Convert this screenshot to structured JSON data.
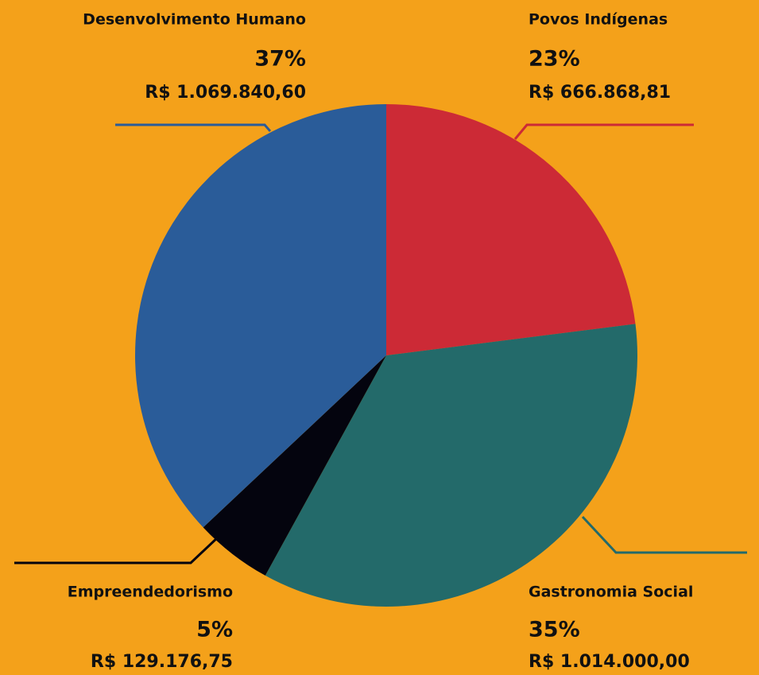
{
  "chart_data": {
    "type": "pie",
    "categories": [
      "Povos Indígenas",
      "Gastronomia Social",
      "Empreendedorismo",
      "Desenvolvimento Humano"
    ],
    "values": [
      23,
      35,
      5,
      37
    ],
    "value_labels": [
      "23%",
      "35%",
      "5%",
      "37%"
    ],
    "amount_labels": [
      "R$ 666.868,81",
      "R$ 1.014.000,00",
      "R$ 129.176,75",
      "R$ 1.069.840,60"
    ],
    "colors": [
      "#cc2a36",
      "#236a6a",
      "#04040e",
      "#2a5c99"
    ]
  }
}
